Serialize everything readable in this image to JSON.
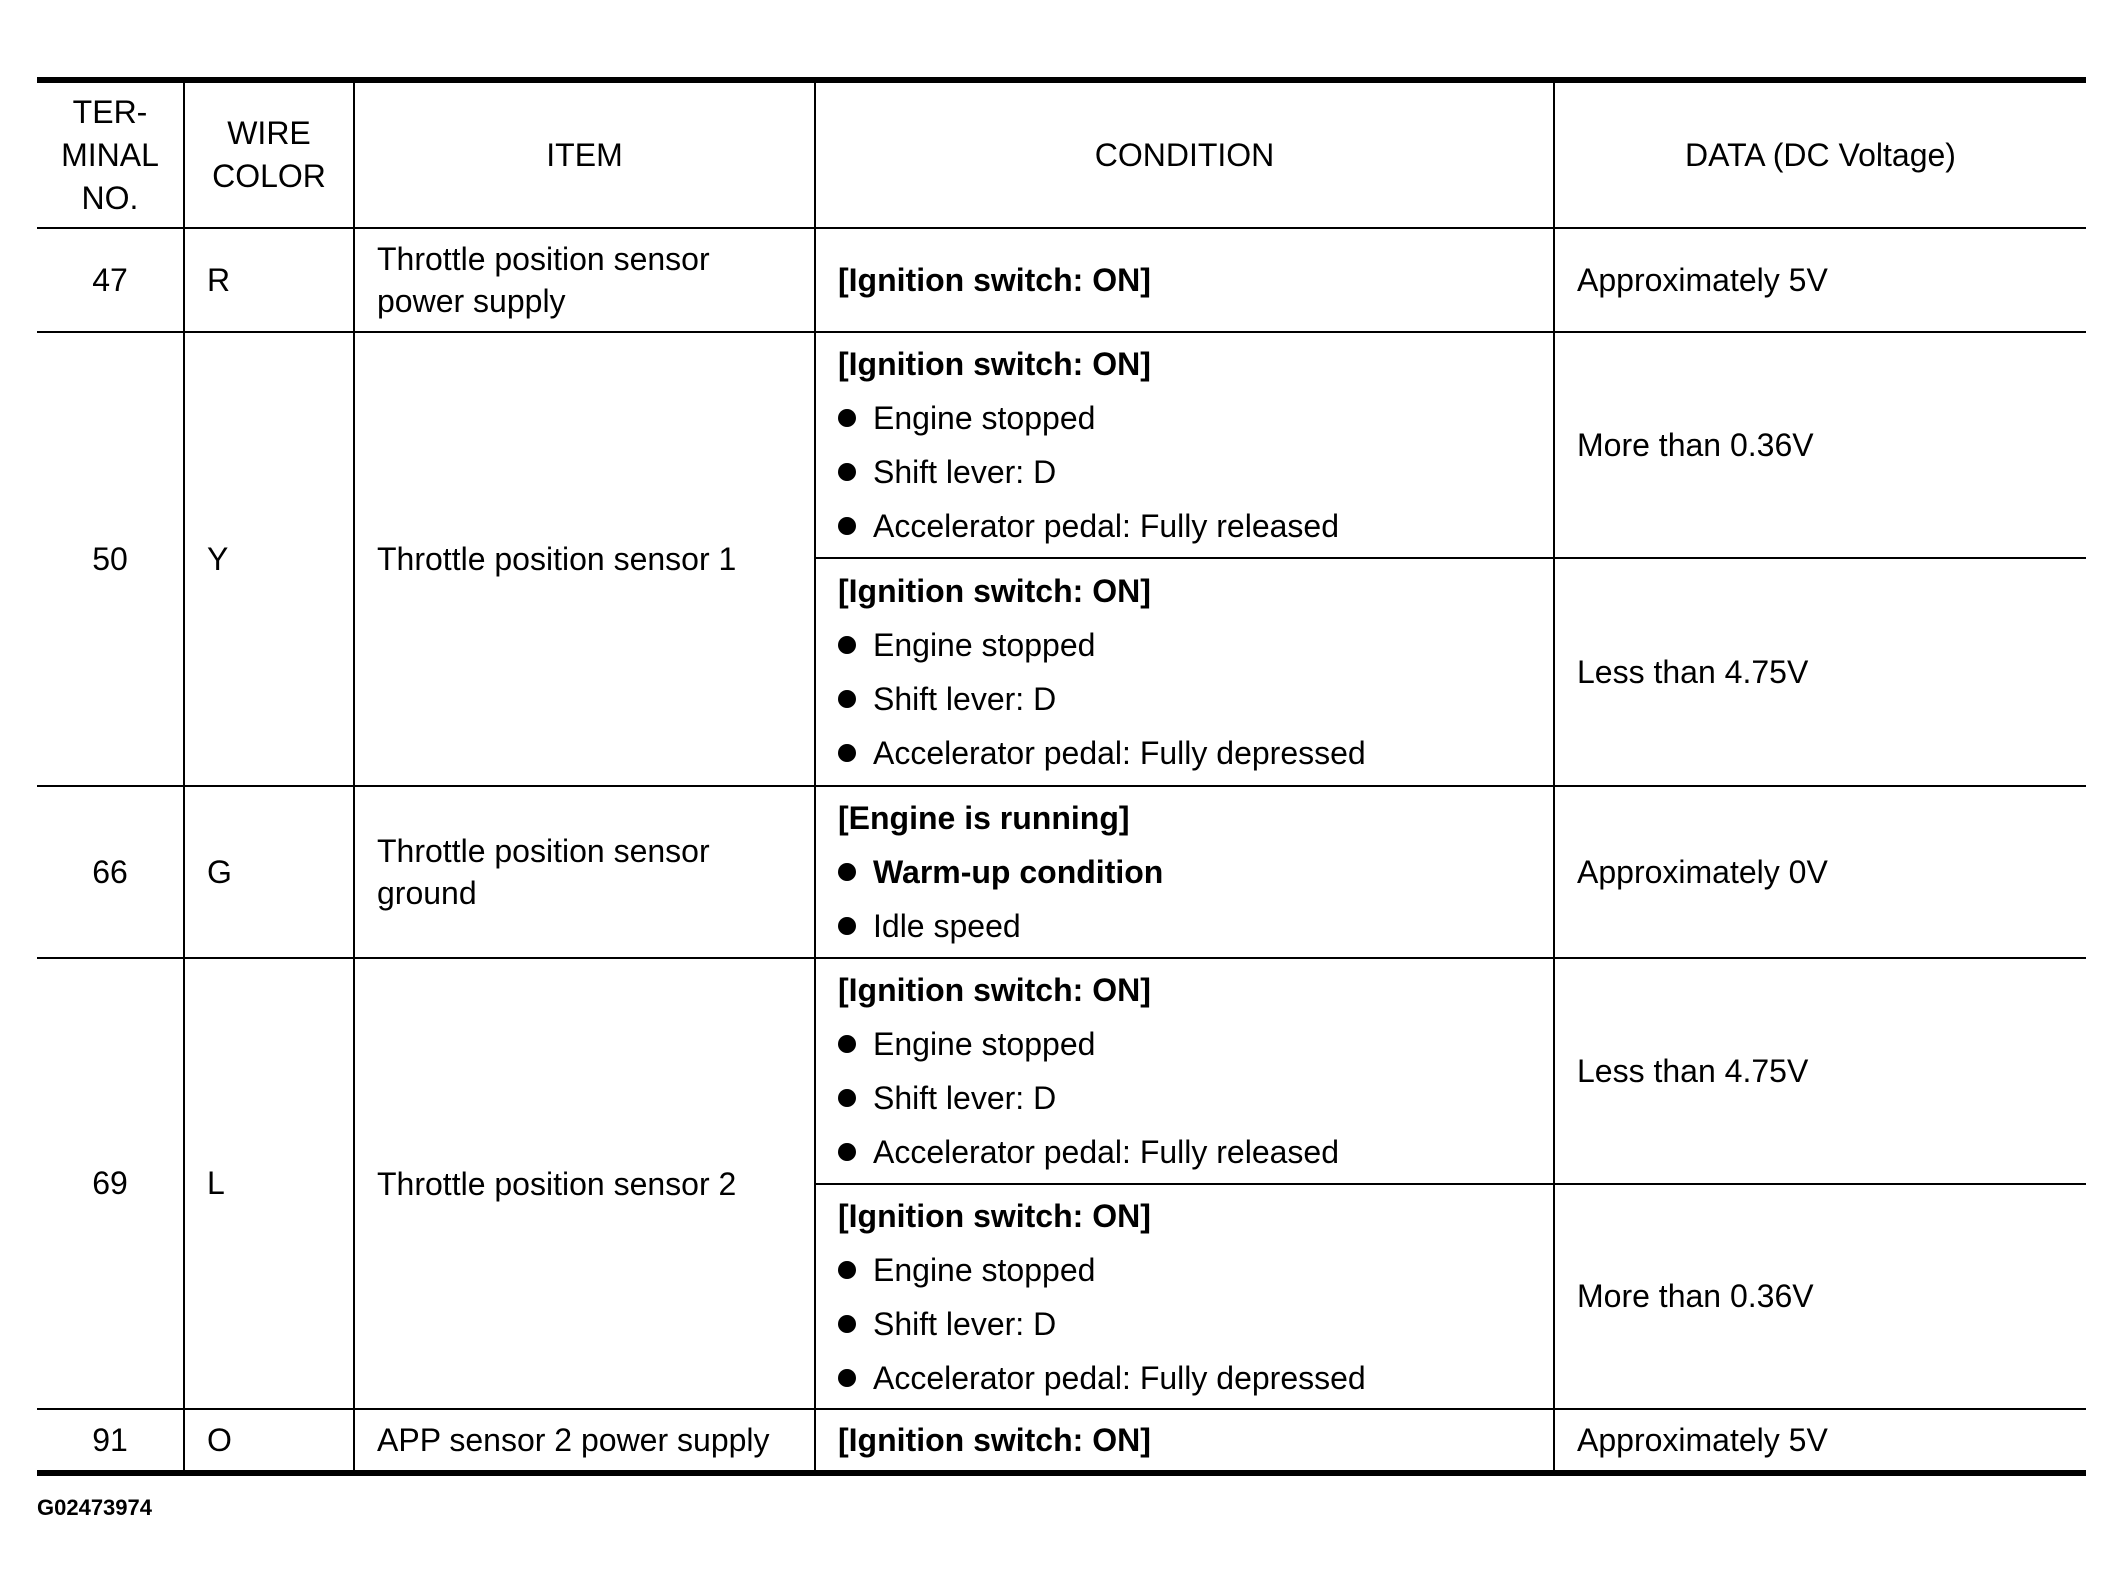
{
  "headers": {
    "terminal": "TER-\nMINAL\nNO.",
    "terminal_lines": [
      "TER-",
      "MINAL",
      "NO."
    ],
    "wire_lines": [
      "WIRE",
      "COLOR"
    ],
    "item": "ITEM",
    "condition": "CONDITION",
    "data": "DATA (DC Voltage)"
  },
  "rows": [
    {
      "terminal": "47",
      "wire": "R",
      "item_lines": [
        "Throttle position sensor",
        "power supply"
      ],
      "conds": [
        {
          "header": "[Ignition switch: ON]",
          "bullets": [],
          "data": "Approximately 5V"
        }
      ]
    },
    {
      "terminal": "50",
      "wire": "Y",
      "item_lines": [
        "Throttle position sensor 1"
      ],
      "conds": [
        {
          "header": "[Ignition switch: ON]",
          "bullets": [
            "Engine stopped",
            "Shift lever: D",
            "Accelerator pedal: Fully released"
          ],
          "data": "More than 0.36V"
        },
        {
          "header": "[Ignition switch: ON]",
          "bullets": [
            "Engine stopped",
            "Shift lever: D",
            "Accelerator pedal: Fully depressed"
          ],
          "data": "Less than 4.75V"
        }
      ]
    },
    {
      "terminal": "66",
      "wire": "G",
      "item_lines": [
        "Throttle position sensor",
        "ground"
      ],
      "conds": [
        {
          "header": "[Engine is running]",
          "bullets": [
            "Warm-up condition",
            "Idle speed"
          ],
          "bold_bullets": [
            0
          ],
          "data": "Approximately 0V"
        }
      ]
    },
    {
      "terminal": "69",
      "wire": "L",
      "item_lines": [
        "Throttle position sensor 2"
      ],
      "conds": [
        {
          "header": "[Ignition switch: ON]",
          "bullets": [
            "Engine stopped",
            "Shift lever: D",
            "Accelerator pedal: Fully released"
          ],
          "data": "Less than 4.75V"
        },
        {
          "header": "[Ignition switch: ON]",
          "bullets": [
            "Engine stopped",
            "Shift lever: D",
            "Accelerator pedal: Fully depressed"
          ],
          "data": "More than 0.36V"
        }
      ]
    },
    {
      "terminal": "91",
      "wire": "O",
      "item_lines": [
        "APP sensor 2 power supply"
      ],
      "conds": [
        {
          "header": "[Ignition switch: ON]",
          "bullets": [],
          "data": "Approximately 5V"
        }
      ]
    }
  ],
  "caption": "G02473974"
}
